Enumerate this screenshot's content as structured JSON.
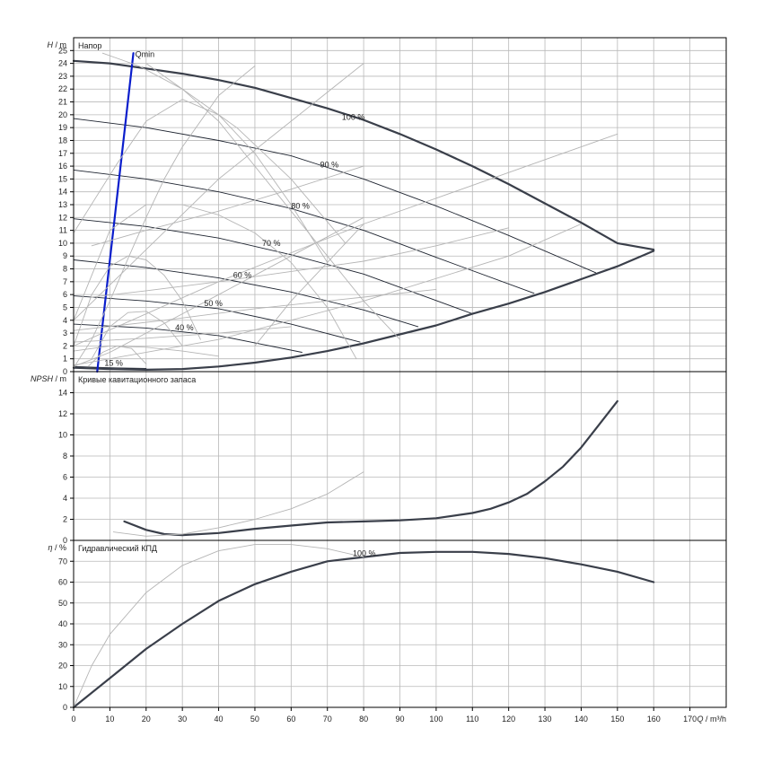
{
  "chart_data": [
    {
      "type": "line",
      "title": "Напор",
      "ylabel_var": "H",
      "ylabel_unit": " / m",
      "xlim": [
        0,
        180
      ],
      "ylim": [
        0,
        26
      ],
      "yticks": [
        0,
        1,
        2,
        3,
        4,
        5,
        6,
        7,
        8,
        9,
        10,
        11,
        12,
        13,
        14,
        15,
        16,
        17,
        18,
        19,
        20,
        21,
        22,
        23,
        24,
        25
      ],
      "series": [
        {
          "name": "100 %",
          "role": "main",
          "x": [
            0,
            10,
            20,
            30,
            40,
            50,
            60,
            70,
            80,
            90,
            100,
            110,
            120,
            130,
            140,
            150,
            160
          ],
          "y": [
            24.2,
            24.0,
            23.6,
            23.2,
            22.7,
            22.1,
            21.3,
            20.5,
            19.6,
            18.5,
            17.3,
            16.0,
            14.6,
            13.1,
            11.6,
            10.0,
            9.5
          ]
        },
        {
          "name": "90 %",
          "role": "speed",
          "x": [
            0,
            20,
            40,
            60,
            70,
            80,
            100,
            120,
            144
          ],
          "y": [
            19.7,
            19.0,
            18.0,
            16.8,
            15.9,
            15.0,
            12.9,
            10.6,
            7.7
          ]
        },
        {
          "name": "80 %",
          "role": "speed",
          "x": [
            0,
            20,
            40,
            60,
            80,
            100,
            127
          ],
          "y": [
            15.7,
            15.0,
            14.0,
            12.7,
            11.0,
            8.9,
            6.1
          ]
        },
        {
          "name": "70 %",
          "role": "speed",
          "x": [
            0,
            20,
            40,
            60,
            80,
            110
          ],
          "y": [
            11.9,
            11.3,
            10.4,
            9.1,
            7.6,
            4.5
          ]
        },
        {
          "name": "60 %",
          "role": "speed",
          "x": [
            0,
            20,
            40,
            60,
            80,
            95
          ],
          "y": [
            8.7,
            8.1,
            7.3,
            6.2,
            4.8,
            3.5
          ]
        },
        {
          "name": "50 %",
          "role": "speed",
          "x": [
            0,
            20,
            40,
            60,
            79
          ],
          "y": [
            5.9,
            5.5,
            4.9,
            3.7,
            2.3
          ]
        },
        {
          "name": "40 %",
          "role": "speed",
          "x": [
            0,
            20,
            40,
            63
          ],
          "y": [
            3.7,
            3.4,
            2.8,
            1.5
          ]
        },
        {
          "name": "15 %",
          "role": "speed",
          "x": [
            0,
            10,
            20
          ],
          "y": [
            0.4,
            0.3,
            0.25
          ]
        },
        {
          "name": "",
          "role": "max",
          "x": [
            0,
            10,
            20,
            30,
            40,
            50,
            60,
            70,
            80,
            90,
            100,
            110,
            120,
            130,
            140,
            150,
            160
          ],
          "y": [
            0.3,
            0.2,
            0.15,
            0.2,
            0.4,
            0.7,
            1.1,
            1.6,
            2.2,
            2.9,
            3.6,
            4.5,
            5.3,
            6.2,
            7.2,
            8.2,
            9.4
          ]
        },
        {
          "name": "Qmin",
          "role": "qmin",
          "x": [
            6.5,
            16.5
          ],
          "y": [
            0,
            24.8
          ]
        },
        {
          "name": "",
          "role": "aux",
          "x": [
            0,
            12,
            20,
            30,
            40,
            50,
            60,
            70
          ],
          "y": [
            10.8,
            16.2,
            19.5,
            21.2,
            20.0,
            17.0,
            13.0,
            8.5
          ]
        },
        {
          "name": "",
          "role": "aux",
          "x": [
            0,
            10,
            20,
            30,
            40,
            50,
            60,
            70,
            78
          ],
          "y": [
            4.0,
            11.0,
            13.0,
            13.0,
            12.2,
            10.8,
            8.5,
            5.0,
            1.0
          ]
        },
        {
          "name": "",
          "role": "aux",
          "x": [
            0,
            5,
            10,
            15,
            20,
            25,
            30,
            35
          ],
          "y": [
            2.0,
            6.0,
            8.2,
            9.0,
            8.7,
            7.5,
            5.5,
            2.5
          ]
        },
        {
          "name": "",
          "role": "aux",
          "x": [
            5,
            10,
            15,
            20,
            25,
            30
          ],
          "y": [
            1.0,
            3.5,
            4.6,
            4.7,
            3.8,
            2.0
          ]
        },
        {
          "name": "",
          "role": "aux",
          "x": [
            4,
            8,
            12,
            16,
            20
          ],
          "y": [
            0.4,
            1.5,
            2.0,
            1.8,
            0.6
          ]
        },
        {
          "name": "",
          "role": "aux",
          "x": [
            8,
            18,
            30,
            45,
            60,
            75
          ],
          "y": [
            24.8,
            23.8,
            22.0,
            19.0,
            15.0,
            10.0
          ]
        },
        {
          "name": "",
          "role": "aux",
          "x": [
            0,
            10,
            20,
            30,
            40,
            50,
            60,
            70,
            80
          ],
          "y": [
            0.4,
            1.5,
            3.0,
            4.5,
            6.0,
            7.5,
            9.0,
            10.5,
            12.0
          ]
        },
        {
          "name": "",
          "role": "aux",
          "x": [
            0,
            5,
            10,
            15,
            20,
            25,
            30,
            40,
            50
          ],
          "y": [
            0.3,
            2.5,
            5.5,
            8.8,
            12.0,
            15.0,
            17.5,
            21.5,
            23.8
          ]
        },
        {
          "name": "",
          "role": "aux",
          "x": [
            0,
            40,
            80,
            120,
            140
          ],
          "y": [
            0.5,
            2.5,
            5.5,
            9.0,
            11.5
          ]
        },
        {
          "name": "",
          "role": "aux",
          "x": [
            0,
            40,
            80,
            120,
            150
          ],
          "y": [
            2.0,
            7.0,
            11.5,
            15.5,
            18.5
          ]
        },
        {
          "name": "",
          "role": "aux",
          "x": [
            0,
            20,
            40,
            60,
            80
          ],
          "y": [
            4.0,
            9.5,
            15.0,
            19.5,
            24.0
          ]
        },
        {
          "name": "",
          "role": "aux",
          "x": [
            5,
            20,
            40,
            60,
            80,
            100,
            120
          ],
          "y": [
            5.8,
            6.3,
            7.0,
            7.8,
            8.6,
            9.8,
            11.2
          ]
        },
        {
          "name": "",
          "role": "aux",
          "x": [
            5,
            20,
            40,
            60,
            80
          ],
          "y": [
            9.8,
            11.0,
            12.5,
            14.2,
            16.0
          ]
        },
        {
          "name": "",
          "role": "aux",
          "x": [
            0,
            25,
            50,
            80,
            100
          ],
          "y": [
            3.2,
            4.0,
            4.9,
            5.8,
            6.4
          ]
        },
        {
          "name": "",
          "role": "aux",
          "x": [
            0,
            20,
            40,
            60
          ],
          "y": [
            2.3,
            2.6,
            3.0,
            3.5
          ]
        },
        {
          "name": "",
          "role": "aux",
          "x": [
            0,
            10,
            20,
            30,
            40
          ],
          "y": [
            1.6,
            2.0,
            1.9,
            1.6,
            1.2
          ]
        },
        {
          "name": "",
          "role": "aux",
          "x": [
            20,
            30,
            40,
            50,
            60,
            70,
            80,
            90
          ],
          "y": [
            24.0,
            22.0,
            19.5,
            16.0,
            12.5,
            9.0,
            5.5,
            2.5
          ]
        },
        {
          "name": "",
          "role": "aux",
          "x": [
            50,
            60,
            70,
            80
          ],
          "y": [
            2.0,
            5.5,
            8.5,
            11.5
          ]
        }
      ],
      "labels": [
        {
          "text": "100 %",
          "x": 74,
          "y": 19.6
        },
        {
          "text": "90 %",
          "x": 68,
          "y": 15.9
        },
        {
          "text": "80 %",
          "x": 60,
          "y": 12.7
        },
        {
          "text": "70 %",
          "x": 52,
          "y": 9.8
        },
        {
          "text": "60 %",
          "x": 44,
          "y": 7.3
        },
        {
          "text": "50 %",
          "x": 36,
          "y": 5.1
        },
        {
          "text": "40 %",
          "x": 28,
          "y": 3.2
        },
        {
          "text": "15 %",
          "x": 8.5,
          "y": 0.45
        },
        {
          "text": "Qmin",
          "x": 17,
          "y": 24.5
        }
      ]
    },
    {
      "type": "line",
      "title": "Кривые кавитационного запаса",
      "ylabel_var": "NPSH",
      "ylabel_unit": " / m",
      "xlim": [
        0,
        180
      ],
      "ylim": [
        0,
        16
      ],
      "yticks": [
        0,
        2,
        4,
        6,
        8,
        10,
        12,
        14
      ],
      "series": [
        {
          "name": "",
          "role": "main",
          "x": [
            14,
            20,
            25,
            30,
            40,
            50,
            60,
            70,
            80,
            90,
            100,
            110,
            115,
            120,
            125,
            130,
            135,
            140,
            145,
            150
          ],
          "y": [
            1.8,
            1.0,
            0.6,
            0.5,
            0.7,
            1.1,
            1.4,
            1.7,
            1.8,
            1.9,
            2.1,
            2.6,
            3.0,
            3.6,
            4.4,
            5.6,
            7.0,
            8.8,
            11.0,
            13.2
          ]
        },
        {
          "name": "",
          "role": "aux",
          "x": [
            11,
            20,
            30,
            40,
            50,
            60,
            70,
            80
          ],
          "y": [
            0.8,
            0.4,
            0.6,
            1.2,
            2.0,
            3.0,
            4.4,
            6.5
          ]
        }
      ],
      "labels": []
    },
    {
      "type": "line",
      "title": "Гидравлический КПД",
      "ylabel_var": "η",
      "ylabel_unit": " / %",
      "xlim": [
        0,
        180
      ],
      "ylim": [
        0,
        80
      ],
      "yticks": [
        0,
        10,
        20,
        30,
        40,
        50,
        60,
        70
      ],
      "series": [
        {
          "name": "100 %",
          "role": "main",
          "x": [
            0,
            10,
            20,
            30,
            40,
            50,
            60,
            70,
            80,
            90,
            100,
            110,
            120,
            130,
            140,
            150,
            160
          ],
          "y": [
            0,
            14,
            28,
            40,
            51,
            59,
            65,
            70,
            72,
            74,
            74.5,
            74.5,
            73.5,
            71.5,
            68.5,
            65,
            60
          ]
        },
        {
          "name": "",
          "role": "aux",
          "x": [
            0,
            5,
            10,
            20,
            30,
            40,
            50,
            60,
            70,
            80
          ],
          "y": [
            0,
            20,
            35,
            55,
            68,
            75,
            78,
            78,
            76,
            72
          ]
        }
      ],
      "labels": [
        {
          "text": "100 %",
          "x": 77,
          "y": 72.5
        }
      ],
      "xticks": [
        0,
        10,
        20,
        30,
        40,
        50,
        60,
        70,
        80,
        90,
        100,
        110,
        120,
        130,
        140,
        150,
        160,
        170
      ],
      "xlabel_var": "Q",
      "xlabel_unit": " / m³/h"
    }
  ],
  "colors": {
    "main": "#3a3f4a",
    "speed": "#1e2430",
    "aux": "#b5b5b5",
    "qmin": "#0b1ecc",
    "grid": "#b9b9b9"
  }
}
